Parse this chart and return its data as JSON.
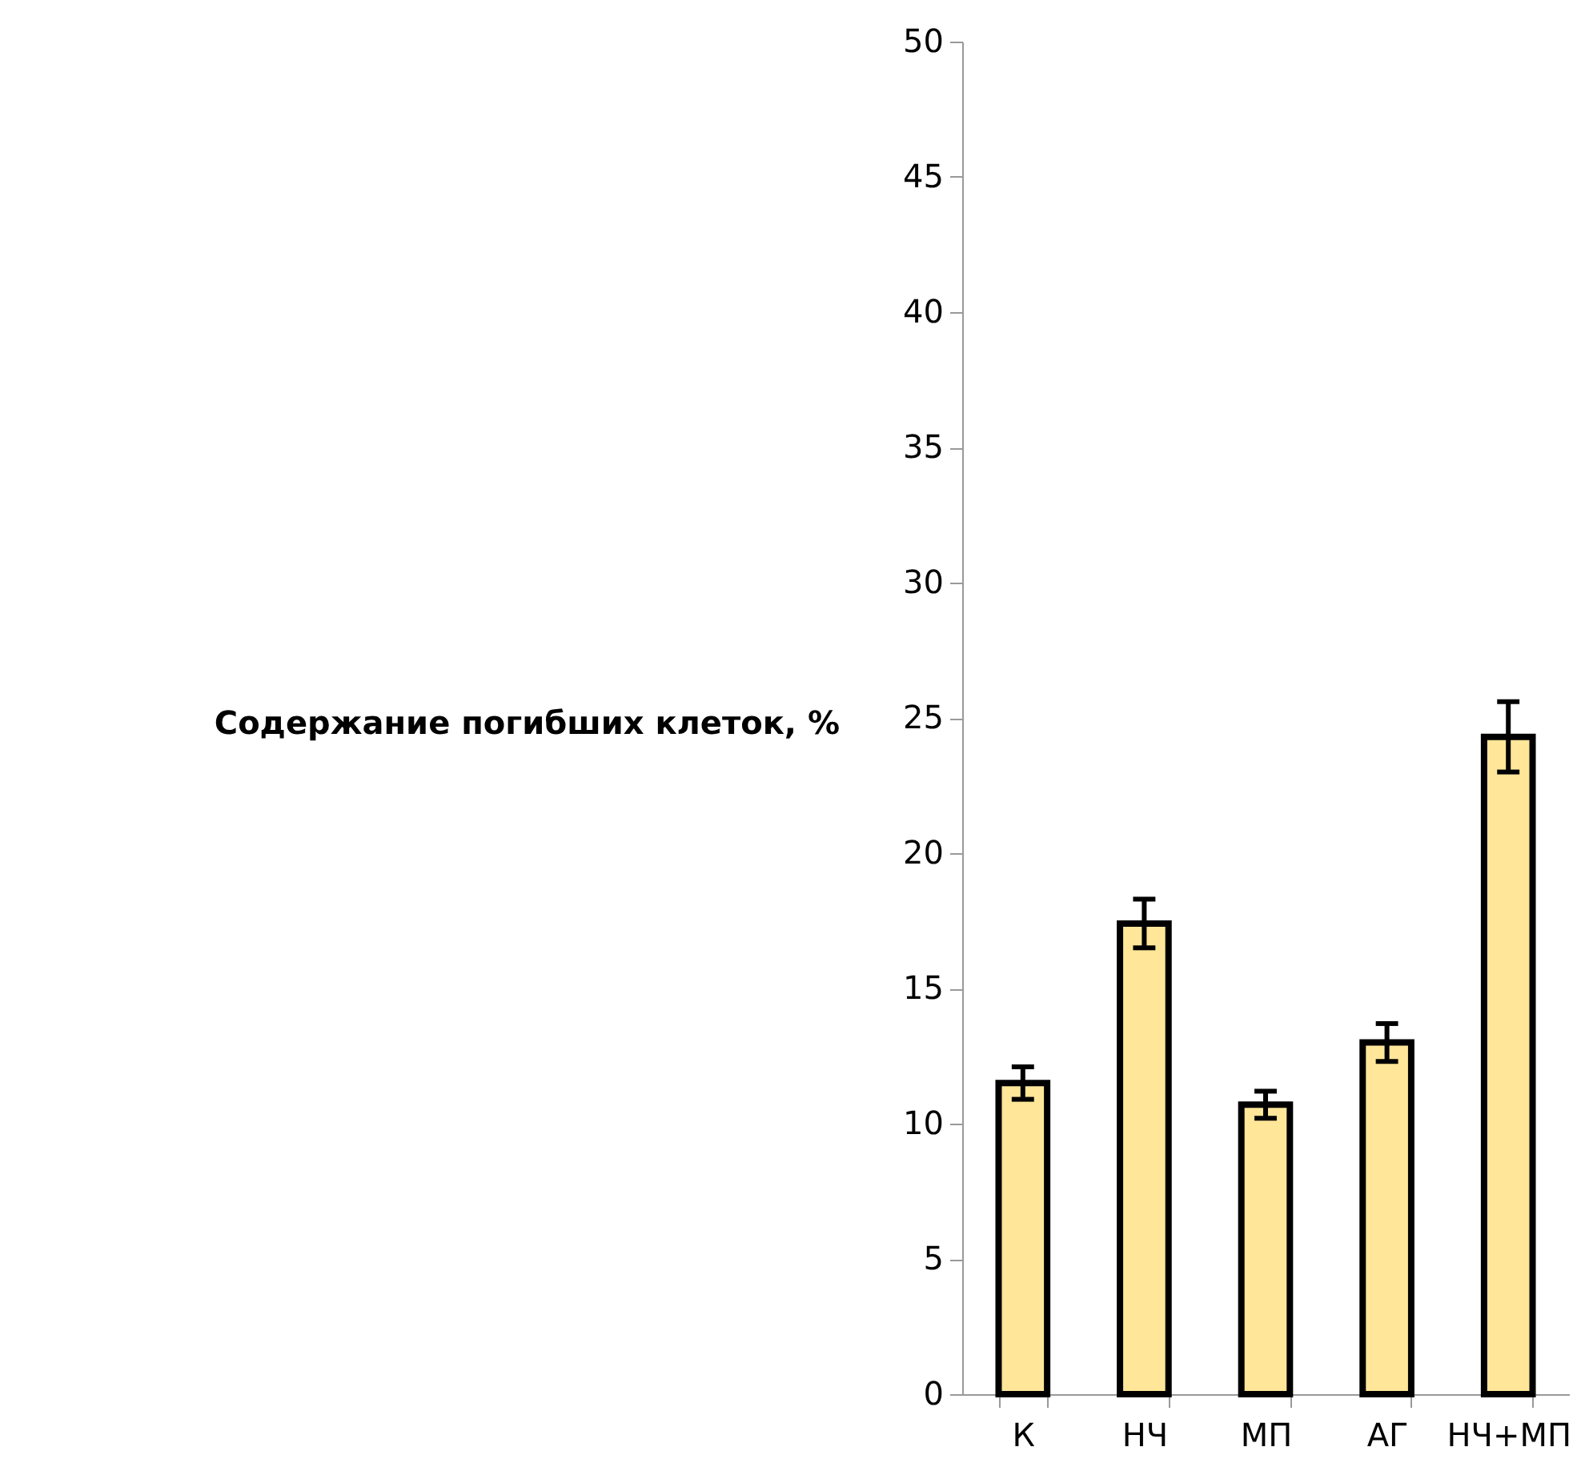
{
  "chart_data": {
    "type": "bar",
    "ylabel": "Содержание погибших клеток, %",
    "categories": [
      "К",
      "НЧ",
      "МП",
      "АГ",
      "НЧ+МП"
    ],
    "values": [
      11.5,
      17.4,
      10.7,
      13.0,
      24.3
    ],
    "errors": [
      0.6,
      0.9,
      0.5,
      0.7,
      1.3
    ],
    "color": "#ffe699",
    "ylim": [
      0,
      50
    ],
    "yticks": [
      0,
      5,
      10,
      15,
      20,
      25,
      30,
      35,
      40,
      45,
      50
    ],
    "grid": false
  }
}
